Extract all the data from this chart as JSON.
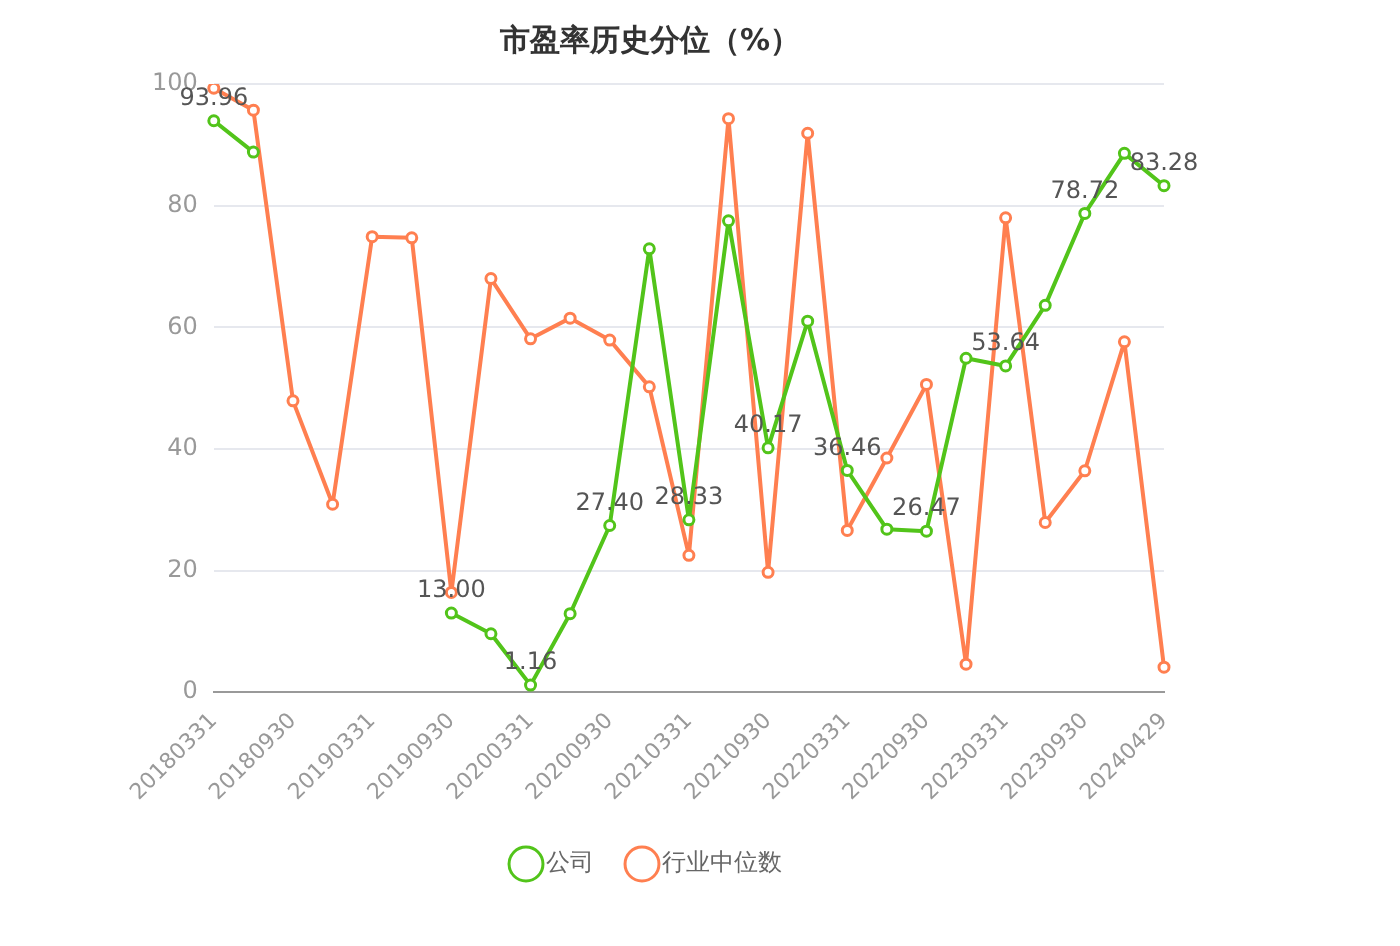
{
  "chart_data": {
    "type": "line",
    "title": "市盈率历史分位（%）",
    "categories": [
      "20180331",
      null,
      "20180930",
      null,
      "20190331",
      null,
      "20190930",
      null,
      "20200331",
      null,
      "20200930",
      null,
      "20210331",
      null,
      "20210930",
      null,
      "20220331",
      null,
      "20220930",
      null,
      "20230331",
      null,
      "20230930",
      null,
      "20240429"
    ],
    "series": [
      {
        "name": "公司",
        "color": "#52c41a",
        "values": [
          93.96,
          88.8,
          null,
          null,
          null,
          null,
          13.0,
          9.6,
          1.16,
          12.9,
          27.4,
          72.9,
          28.33,
          77.5,
          40.17,
          61.0,
          36.46,
          26.8,
          26.47,
          54.9,
          53.64,
          63.6,
          78.72,
          88.6,
          83.28
        ],
        "value_labels": [
          "93.96",
          null,
          null,
          null,
          null,
          null,
          "13.00",
          null,
          "1.16",
          null,
          "27.40",
          null,
          "28.33",
          null,
          "40.17",
          null,
          "36.46",
          null,
          "26.47",
          null,
          "53.64",
          null,
          "78.72",
          null,
          "83.28"
        ]
      },
      {
        "name": "行业中位数",
        "color": "#ff7f50",
        "values": [
          99.3,
          95.7,
          47.9,
          30.9,
          74.9,
          74.7,
          16.4,
          68.0,
          58.1,
          61.5,
          57.9,
          50.2,
          22.5,
          94.3,
          19.7,
          91.9,
          26.6,
          38.5,
          50.6,
          4.6,
          78.0,
          27.9,
          36.4,
          57.6,
          4.1
        ]
      }
    ],
    "ylim": [
      0,
      100
    ],
    "yticks": [
      0,
      20,
      40,
      60,
      80,
      100
    ],
    "grid": "y",
    "legend": "bottom",
    "marker": "circle",
    "line_style": "solid"
  }
}
